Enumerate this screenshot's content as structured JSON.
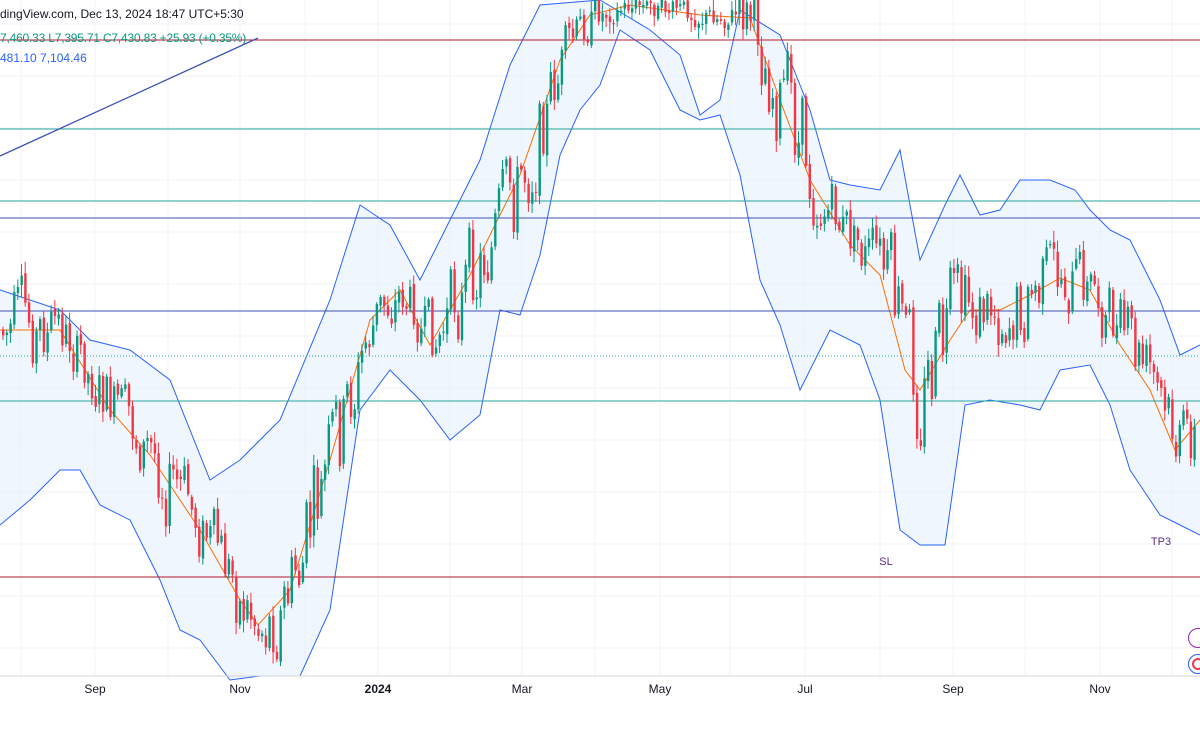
{
  "header": {
    "source_line": "dingView.com, Dec 13, 2024 18:47 UTC+5:30",
    "ohlc_line": "7,460.33  L7,395.71  C7,430.83  +25.93 (+0.35%)",
    "bb_line": "481.10  7,104.46"
  },
  "colors": {
    "up": "#089981",
    "down": "#f23645",
    "bb_band": "#2962ff",
    "bb_basis": "#ff6d00",
    "fill": "#e3effc",
    "red_level": "#b2182b",
    "teal_level": "#26a69a",
    "blue_level": "#3f51b5"
  },
  "chart_data": {
    "type": "candlestick",
    "x_labels": [
      {
        "label": "Sep",
        "bold": false
      },
      {
        "label": "Nov",
        "bold": false
      },
      {
        "label": "2024",
        "bold": true
      },
      {
        "label": "Mar",
        "bold": false
      },
      {
        "label": "May",
        "bold": false
      },
      {
        "label": "Jul",
        "bold": false
      },
      {
        "label": "Sep",
        "bold": false
      },
      {
        "label": "Nov",
        "bold": false
      }
    ],
    "visible_price_values": {
      "high": "7,460.33",
      "low": "7,395.71",
      "close": "7,430.83",
      "change": "+25.93",
      "change_pct": "+0.35%",
      "bb_upper_partial": "481.10",
      "bb_lower": "7,104.46"
    },
    "annotations": [
      {
        "label": "SL"
      },
      {
        "label": "TP3"
      }
    ],
    "indicators": [
      "Bollinger Bands (upper, basis, lower)"
    ]
  }
}
